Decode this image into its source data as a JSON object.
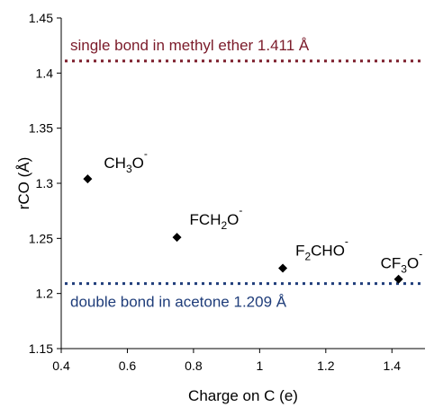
{
  "chart_data": {
    "type": "scatter",
    "xlabel": "Charge on C (e)",
    "ylabel": "rCO (Å)",
    "xlim": [
      0.4,
      1.5
    ],
    "ylim": [
      1.15,
      1.45
    ],
    "xticks": [
      "0.4",
      "0.6",
      "0.8",
      "1",
      "1.2",
      "1.4"
    ],
    "yticks": [
      "1.15",
      "1.2",
      "1.25",
      "1.3",
      "1.35",
      "1.4",
      "1.45"
    ],
    "grid": false,
    "points": [
      {
        "x": 0.48,
        "y": 1.304,
        "label_parts": [
          [
            "CH",
            ""
          ],
          [
            "3",
            "sub"
          ],
          [
            "O",
            ""
          ],
          [
            "-",
            "sup"
          ]
        ]
      },
      {
        "x": 0.75,
        "y": 1.251,
        "label_parts": [
          [
            "FCH",
            ""
          ],
          [
            "2",
            "sub"
          ],
          [
            "O",
            ""
          ],
          [
            "-",
            "sup"
          ]
        ]
      },
      {
        "x": 1.07,
        "y": 1.223,
        "label_parts": [
          [
            "F",
            ""
          ],
          [
            "2",
            "sub"
          ],
          [
            "CHO",
            ""
          ],
          [
            "-",
            "sup"
          ]
        ]
      },
      {
        "x": 1.42,
        "y": 1.213,
        "label_parts": [
          [
            "CF",
            ""
          ],
          [
            "3",
            "sub"
          ],
          [
            "O",
            ""
          ],
          [
            "-",
            "sup"
          ]
        ]
      }
    ],
    "reference_lines": [
      {
        "y": 1.411,
        "label": "single bond in methyl ether 1.411 Å",
        "color": "#7b1b2a",
        "style": "dotted"
      },
      {
        "y": 1.209,
        "label": "double bond in acetone 1.209 Å",
        "color": "#1f3d7a",
        "style": "dotted"
      }
    ],
    "marker": {
      "shape": "diamond",
      "color": "#000000"
    }
  }
}
